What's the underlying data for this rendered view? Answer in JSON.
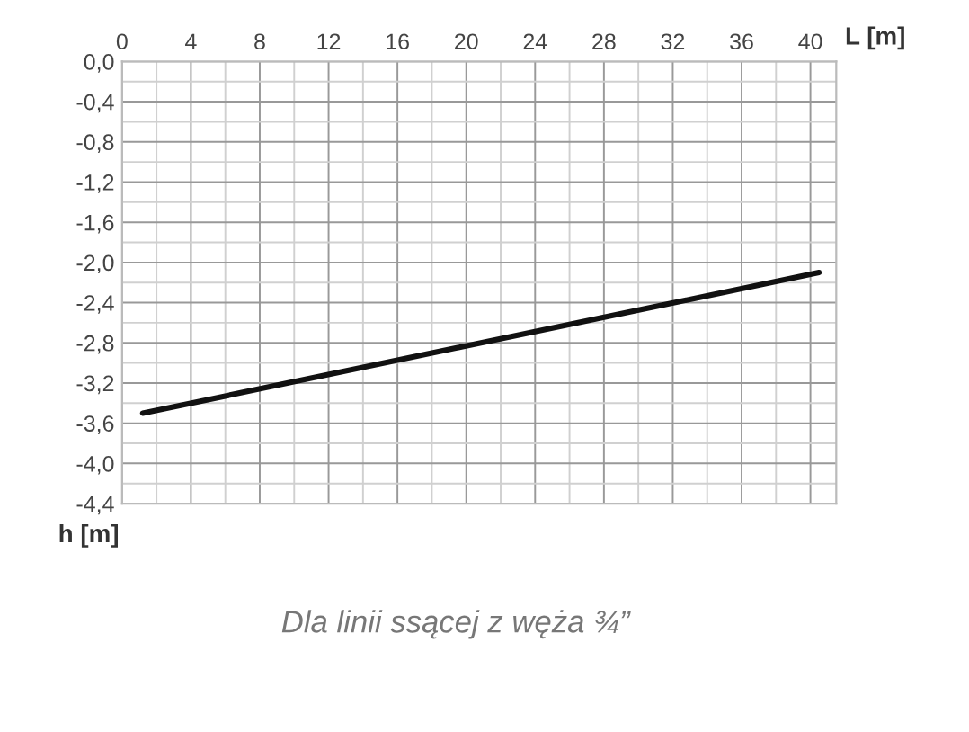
{
  "chart_data": {
    "type": "line",
    "xlabel": "L [m]",
    "ylabel": "h [m]",
    "annotations": [
      "Dla linii ssącej z węża ¾”"
    ],
    "x": [
      1.2,
      40.5
    ],
    "series": [
      {
        "color": "#111111",
        "values": [
          -3.5,
          -2.1
        ]
      }
    ],
    "xlim": [
      0,
      41.5
    ],
    "xticks": [
      0,
      4,
      8,
      12,
      16,
      20,
      24,
      28,
      32,
      36,
      40
    ],
    "ylim": [
      -4.4,
      0
    ],
    "yticks": [
      {
        "value": 0,
        "label": "0,0"
      },
      {
        "value": -0.4,
        "label": "-0,4"
      },
      {
        "value": -0.8,
        "label": "-0,8"
      },
      {
        "value": -1.2,
        "label": "-1,2"
      },
      {
        "value": -1.6,
        "label": "-1,6"
      },
      {
        "value": -2.0,
        "label": "-2,0"
      },
      {
        "value": -2.4,
        "label": "-2,4"
      },
      {
        "value": -2.8,
        "label": "-2,8"
      },
      {
        "value": -3.2,
        "label": "-3,2"
      },
      {
        "value": -3.6,
        "label": "-3,6"
      },
      {
        "value": -4.0,
        "label": "-4,0"
      },
      {
        "value": -4.4,
        "label": "-4,4"
      }
    ],
    "grid": true,
    "line_style": "solid",
    "marker": "none"
  }
}
